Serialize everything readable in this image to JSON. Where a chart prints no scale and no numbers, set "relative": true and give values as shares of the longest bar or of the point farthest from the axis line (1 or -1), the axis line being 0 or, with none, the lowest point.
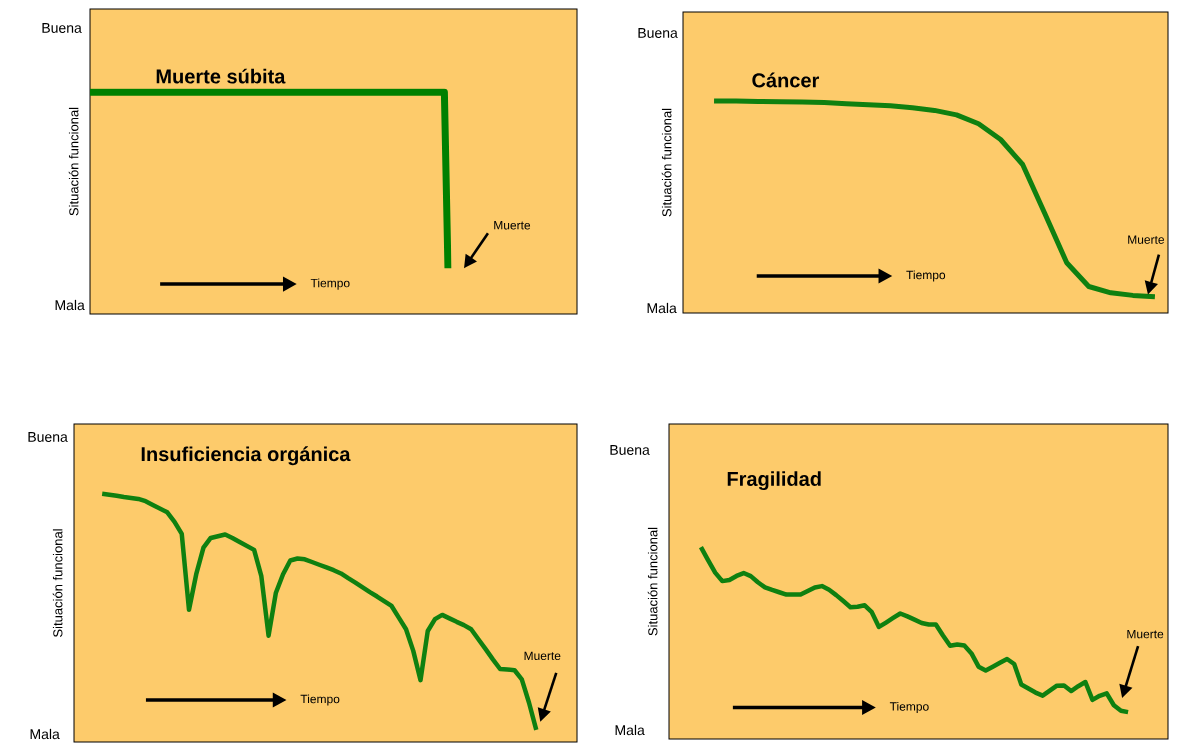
{
  "chart_data": [
    {
      "type": "line",
      "relative": true,
      "title": "Muerte súbita",
      "ylabel": "Situación funcional",
      "xlabel": "Tiempo",
      "color": "#008000",
      "categories": [
        null,
        null,
        null,
        null,
        null,
        null,
        null,
        null,
        null,
        null,
        null,
        null,
        null,
        null,
        null,
        null,
        null,
        null,
        null,
        null,
        null,
        null,
        null,
        null,
        null,
        null,
        null,
        null,
        null,
        null,
        null,
        null,
        null,
        null,
        null,
        null,
        null,
        null,
        null,
        null,
        null,
        null,
        null,
        null,
        null,
        null,
        null,
        null,
        null,
        null,
        null,
        null,
        null,
        null,
        null,
        null,
        null,
        null,
        null,
        null,
        null,
        null,
        null,
        null,
        null,
        null,
        null,
        null,
        null,
        null,
        null,
        null,
        null,
        null,
        null,
        null,
        null,
        null,
        null,
        null,
        null,
        null,
        null,
        null,
        null,
        null,
        null,
        null,
        null,
        null,
        null,
        null,
        null,
        null,
        null,
        null,
        null,
        null,
        null,
        null,
        null
      ],
      "values": [
        1,
        1,
        1,
        1,
        1,
        1,
        1,
        1,
        1,
        1,
        1,
        1,
        1,
        1,
        1,
        1,
        1,
        1,
        1,
        1,
        1,
        1,
        1,
        1,
        1,
        1,
        1,
        1,
        1,
        1,
        1,
        1,
        1,
        1,
        1,
        1,
        1,
        1,
        1,
        1,
        1,
        1,
        1,
        1,
        1,
        1,
        1,
        1,
        1,
        1,
        1,
        1,
        1,
        1,
        1,
        1,
        1,
        1,
        1,
        1,
        1,
        1,
        1,
        1,
        1,
        1,
        1,
        1,
        1,
        1,
        1,
        1,
        1,
        1,
        1,
        1,
        1,
        1,
        1,
        1,
        1,
        1,
        1,
        1,
        1,
        1,
        1,
        1,
        1,
        1,
        1,
        1,
        1,
        1,
        1,
        1,
        1,
        1,
        1,
        1,
        0.206
      ],
      "annotations": [
        "Buena",
        "Mala",
        "Muerte"
      ]
    },
    {
      "type": "line",
      "relative": true,
      "title": "Cáncer",
      "ylabel": "Situación funcional",
      "xlabel": "Tiempo",
      "color": "#0f8010",
      "categories": [
        null,
        null,
        null,
        null,
        null,
        null,
        null,
        null,
        null,
        null,
        null,
        null,
        null,
        null,
        null,
        null,
        null,
        null,
        null,
        null,
        null
      ],
      "values": [
        1,
        0.999,
        0.997,
        0.996,
        0.995,
        0.992,
        0.987,
        0.982,
        0.977,
        0.968,
        0.955,
        0.934,
        0.892,
        0.818,
        0.7,
        0.47,
        0.237,
        0.125,
        0.095,
        0.083,
        0.077
      ],
      "annotations": [
        "Buena",
        "Mala",
        "Muerte"
      ]
    },
    {
      "type": "line",
      "relative": true,
      "title": "Insuficiencia orgánica",
      "ylabel": "Situación funcional",
      "xlabel": "Tiempo",
      "color": "#0f8010",
      "categories": [
        null,
        null,
        null,
        null,
        null,
        null,
        null,
        null,
        null,
        null,
        null,
        null,
        null,
        null,
        null,
        null,
        null,
        null,
        null,
        null,
        null,
        null,
        null,
        null,
        null,
        null,
        null,
        null,
        null,
        null,
        null,
        null,
        null,
        null,
        null,
        null,
        null,
        null,
        null,
        null,
        null,
        null,
        null,
        null,
        null,
        null,
        null,
        null,
        null,
        null,
        null,
        null,
        null,
        null,
        null,
        null,
        null,
        null,
        null,
        null,
        null
      ],
      "values": [
        1,
        0.996,
        0.992,
        0.987,
        0.983,
        0.979,
        0.97,
        0.955,
        0.94,
        0.925,
        0.887,
        0.838,
        0.533,
        0.676,
        0.783,
        0.822,
        0.829,
        0.836,
        0.822,
        0.806,
        0.79,
        0.774,
        0.668,
        0.428,
        0.6,
        0.676,
        0.731,
        0.739,
        0.736,
        0.725,
        0.714,
        0.703,
        0.692,
        0.679,
        0.66,
        0.642,
        0.623,
        0.604,
        0.586,
        0.567,
        0.548,
        0.501,
        0.454,
        0.367,
        0.249,
        0.447,
        0.495,
        0.512,
        0.498,
        0.484,
        0.471,
        0.454,
        0.414,
        0.374,
        0.333,
        0.294,
        0.292,
        0.289,
        0.252,
        0.158,
        0.049
      ],
      "annotations": [
        "Buena",
        "Mala",
        "Muerte"
      ]
    },
    {
      "type": "line",
      "relative": true,
      "title": "Fragilidad",
      "ylabel": "Situación funcional",
      "xlabel": "Tiempo",
      "color": "#0f8010",
      "categories": [
        null,
        null,
        null,
        null,
        null,
        null,
        null,
        null,
        null,
        null,
        null,
        null,
        null,
        null,
        null,
        null,
        null,
        null,
        null,
        null,
        null,
        null,
        null,
        null,
        null,
        null,
        null,
        null,
        null,
        null,
        null,
        null,
        null,
        null,
        null,
        null,
        null,
        null,
        null,
        null,
        null,
        null,
        null,
        null,
        null,
        null,
        null,
        null,
        null,
        null,
        null,
        null,
        null,
        null,
        null,
        null,
        null,
        null,
        null,
        null,
        null
      ],
      "values": [
        1,
        0.932,
        0.867,
        0.823,
        0.829,
        0.85,
        0.865,
        0.849,
        0.817,
        0.79,
        0.777,
        0.765,
        0.753,
        0.753,
        0.753,
        0.771,
        0.79,
        0.797,
        0.778,
        0.75,
        0.719,
        0.687,
        0.689,
        0.697,
        0.661,
        0.584,
        0.607,
        0.631,
        0.654,
        0.639,
        0.622,
        0.605,
        0.597,
        0.597,
        0.54,
        0.486,
        0.493,
        0.487,
        0.446,
        0.377,
        0.357,
        0.377,
        0.397,
        0.417,
        0.391,
        0.284,
        0.263,
        0.242,
        0.226,
        0.252,
        0.278,
        0.279,
        0.25,
        0.275,
        0.297,
        0.204,
        0.225,
        0.238,
        0.176,
        0.147,
        0.14
      ],
      "annotations": [
        "Buena",
        "Mala",
        "Muerte"
      ]
    }
  ]
}
